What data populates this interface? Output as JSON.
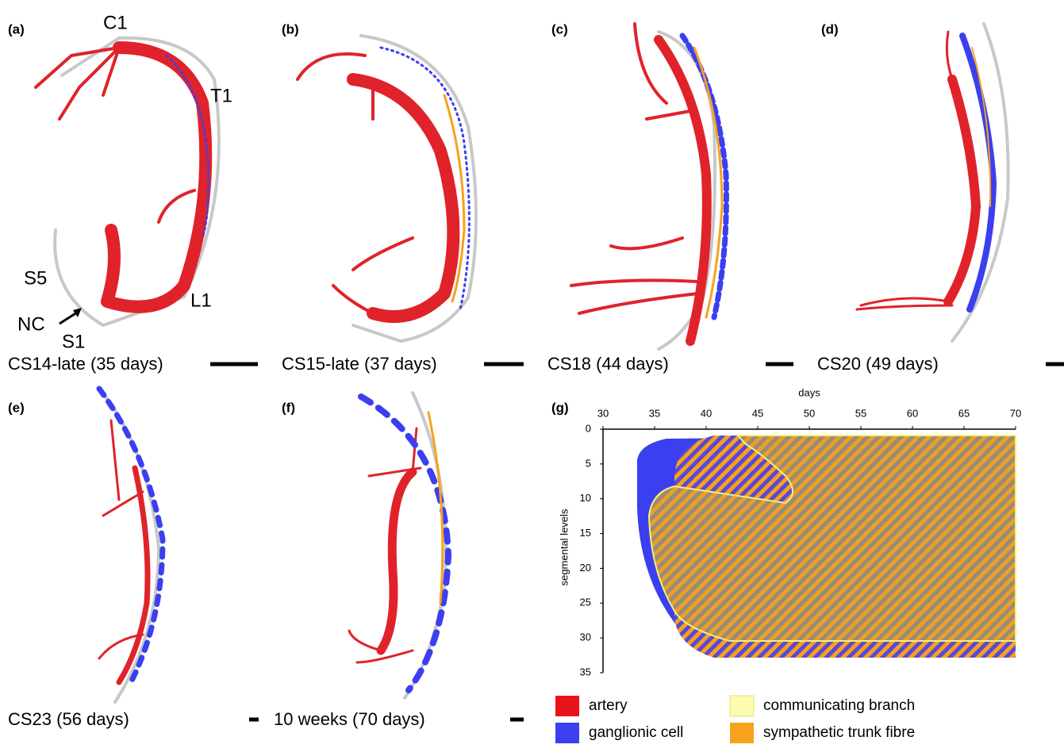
{
  "panels": [
    {
      "label": "(a)",
      "caption": "CS14-late (35 days)"
    },
    {
      "label": "(b)",
      "caption": "CS15-late (37 days)"
    },
    {
      "label": "(c)",
      "caption": "CS18 (44 days)"
    },
    {
      "label": "(d)",
      "caption": "CS20 (49 days)"
    },
    {
      "label": "(e)",
      "caption": "CS23 (56 days)"
    },
    {
      "label": "(f)",
      "caption": "10 weeks (70 days)"
    }
  ],
  "landmarks": [
    "C1",
    "T1",
    "S5",
    "NC",
    "S1",
    "L1"
  ],
  "chart_data": {
    "type": "area",
    "label": "(g)",
    "x_label": "days",
    "y_label": "segmental levels",
    "xlim": [
      30,
      70
    ],
    "ylim": [
      0,
      35
    ],
    "y_inverted": true,
    "xticks": [
      30,
      35,
      40,
      45,
      50,
      55,
      60,
      65,
      70
    ],
    "yticks": [
      0,
      5,
      10,
      15,
      20,
      25,
      30,
      35
    ],
    "legend": [
      {
        "name": "artery",
        "color": "#e8141b"
      },
      {
        "name": "ganglionic cell",
        "color": "#3b3ff0"
      },
      {
        "name": "communicating branch",
        "color": "#fdfbb0"
      },
      {
        "name": "sympathetic trunk fibre",
        "color": "#f6a21c"
      }
    ]
  }
}
